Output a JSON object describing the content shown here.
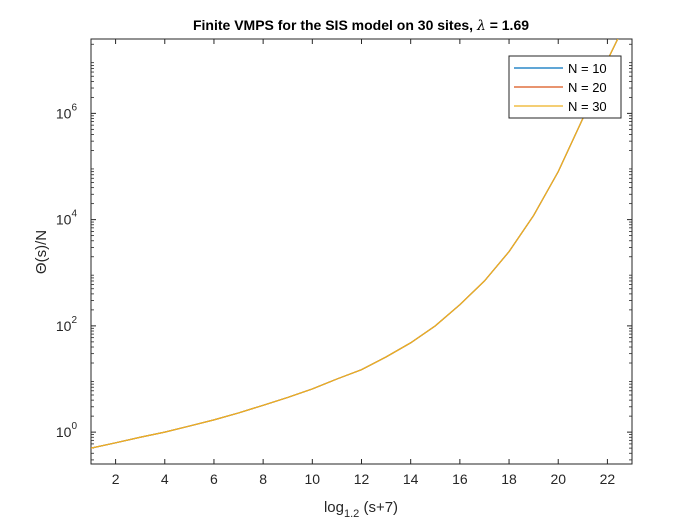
{
  "chart_data": {
    "type": "line",
    "title": "Finite VMPS for the SIS model on 30 sites, λ = 1.69",
    "title_parts": {
      "main": "Finite VMPS for the SIS model on 30 sites, ",
      "symbol": "λ",
      "rest": " = 1.69"
    },
    "xlabel": "log_{1.2} (s+7)",
    "xlabel_parts": {
      "base": "log",
      "sub": "1.2",
      "rest": " (s+7)"
    },
    "ylabel": "Θ(s)/N",
    "xlim": [
      1,
      23
    ],
    "ylim_log10": [
      -0.6,
      7.4
    ],
    "y_scale": "log",
    "x_ticks": [
      2,
      4,
      6,
      8,
      10,
      12,
      14,
      16,
      18,
      20,
      22
    ],
    "x_tick_labels": [
      "2",
      "4",
      "6",
      "8",
      "10",
      "12",
      "14",
      "16",
      "18",
      "20",
      "22"
    ],
    "y_ticks": [
      {
        "exp": 0,
        "base": "10",
        "sup": "0"
      },
      {
        "exp": 2,
        "base": "10",
        "sup": "2"
      },
      {
        "exp": 4,
        "base": "10",
        "sup": "4"
      },
      {
        "exp": 6,
        "base": "10",
        "sup": "6"
      }
    ],
    "grid": false,
    "legend_position": "top-right",
    "series": [
      {
        "name": "N = 10",
        "color": "#0072BD",
        "x": [
          1,
          2,
          3,
          4,
          5,
          6,
          7,
          8,
          9,
          10,
          11,
          12,
          13,
          14,
          15,
          16,
          17,
          18,
          19,
          20,
          21,
          22,
          22.5
        ],
        "y": [
          0.5,
          0.63,
          0.8,
          1.0,
          1.3,
          1.7,
          2.3,
          3.2,
          4.5,
          6.5,
          10,
          15,
          26,
          48,
          100,
          250,
          700,
          2500,
          12000,
          80000,
          800000,
          10000000,
          30000000
        ]
      },
      {
        "name": "N = 20",
        "color": "#D95319",
        "x": [
          1,
          2,
          3,
          4,
          5,
          6,
          7,
          8,
          9,
          10,
          11,
          12,
          13,
          14,
          15,
          16,
          17,
          18,
          19,
          20,
          21,
          22,
          22.5
        ],
        "y": [
          0.5,
          0.63,
          0.8,
          1.0,
          1.3,
          1.7,
          2.3,
          3.2,
          4.5,
          6.5,
          10,
          15,
          26,
          48,
          100,
          250,
          700,
          2500,
          12000,
          80000,
          800000,
          10000000,
          30000000
        ]
      },
      {
        "name": "N = 30",
        "color": "#EDB120",
        "x": [
          1,
          2,
          3,
          4,
          5,
          6,
          7,
          8,
          9,
          10,
          11,
          12,
          13,
          14,
          15,
          16,
          17,
          18,
          19,
          20,
          21,
          22,
          22.5
        ],
        "y": [
          0.5,
          0.63,
          0.8,
          1.0,
          1.3,
          1.7,
          2.3,
          3.2,
          4.5,
          6.5,
          10,
          15,
          26,
          48,
          100,
          250,
          700,
          2500,
          12000,
          80000,
          800000,
          10000000,
          30000000
        ]
      }
    ]
  }
}
